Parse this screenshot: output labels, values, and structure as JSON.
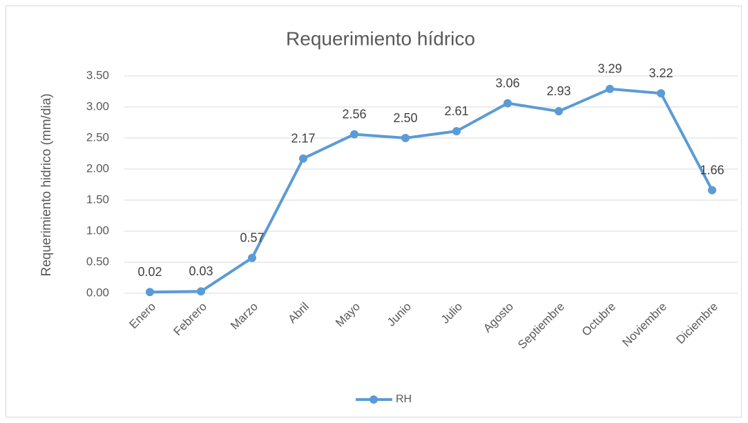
{
  "chart_data": {
    "type": "line",
    "title": "Requerimiento hídrico",
    "y_label": "Requerimiento hidrico (mm/dia)",
    "categories": [
      "Enero",
      "Febrero",
      "Marzo",
      "Abril",
      "Mayo",
      "Junio",
      "Julio",
      "Agosto",
      "Septiembre",
      "Octubre",
      "Noviembre",
      "Diciembre"
    ],
    "series": [
      {
        "name": "RH",
        "color": "#5b9bd5",
        "values": [
          0.02,
          0.03,
          0.57,
          2.17,
          2.56,
          2.5,
          2.61,
          3.06,
          2.93,
          3.29,
          3.22,
          1.66
        ],
        "value_labels": [
          "0.02",
          "0.03",
          "0.57",
          "2.17",
          "2.56",
          "2.50",
          "2.61",
          "3.06",
          "2.93",
          "3.29",
          "3.22",
          "1.66"
        ]
      }
    ],
    "ylim": [
      0,
      3.5
    ],
    "yticks": [
      {
        "value": 0,
        "label": "0.00"
      },
      {
        "value": 0.5,
        "label": "0.50"
      },
      {
        "value": 1,
        "label": "1.00"
      },
      {
        "value": 1.5,
        "label": "1.50"
      },
      {
        "value": 2,
        "label": "2.00"
      },
      {
        "value": 2.5,
        "label": "2.50"
      },
      {
        "value": 3,
        "label": "3.00"
      },
      {
        "value": 3.5,
        "label": "3.50"
      }
    ],
    "grid": true,
    "legend": "bottom"
  }
}
